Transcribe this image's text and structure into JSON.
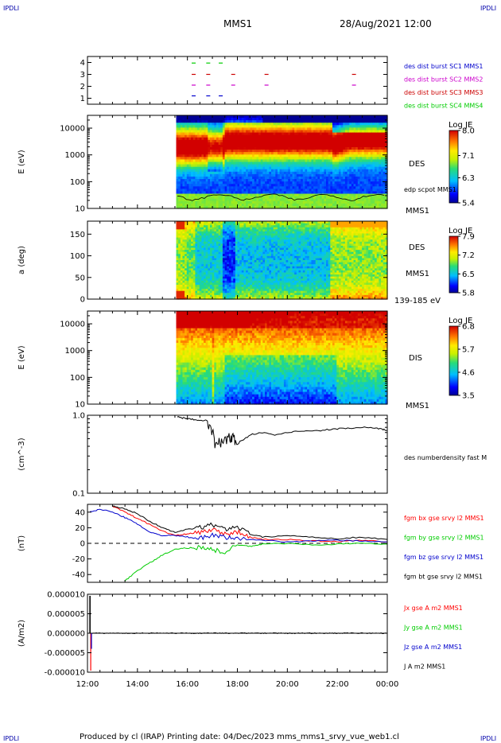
{
  "header": {
    "spacecraft": "MMS1",
    "datetime": "28/Aug/2021 12:00"
  },
  "corner_label": "IPDLI",
  "footer": {
    "text": "Produced by cl (IRAP)   Printing date: 04/Dec/2023   mms_mms1_srvy_vue_web1.cl"
  },
  "colors": {
    "red": "#ff0000",
    "green": "#00cc00",
    "blue": "#0000cc",
    "magenta": "#cc00cc",
    "black": "#000000"
  },
  "chart_data": [
    {
      "type": "scatter",
      "panel": "burst-availability",
      "yticks": [
        "1",
        "2",
        "3",
        "4"
      ],
      "ylim": [
        0.5,
        4.5
      ],
      "series": [
        {
          "name": "des dist burst SC1 MMS1",
          "color": "#0000cc",
          "y": 1.2,
          "x": [
            "16:15",
            "16:50",
            "17:20"
          ]
        },
        {
          "name": "des dist burst SC2 MMS2",
          "color": "#cc00cc",
          "y": 2.1,
          "x": [
            "16:15",
            "16:50",
            "17:50",
            "19:10",
            "22:40"
          ]
        },
        {
          "name": "des dist burst SC3 MMS3",
          "color": "#cc0000",
          "y": 3.0,
          "x": [
            "16:15",
            "16:50",
            "17:50",
            "19:10",
            "22:40"
          ]
        },
        {
          "name": "des dist burst SC4 MMS4",
          "color": "#00cc00",
          "y": 3.95,
          "x": [
            "16:15",
            "16:50",
            "17:20"
          ]
        }
      ]
    },
    {
      "type": "heatmap",
      "panel": "des-energy",
      "ylabel": "E (eV)",
      "yscale": "log",
      "yticks": [
        "10",
        "100",
        "1000",
        "10000"
      ],
      "label": "DES",
      "overlay_label": "edp scpot MMS1",
      "sat_label": "MMS1",
      "colorbar": {
        "title": "Log JE",
        "ticks": [
          "8.0",
          "7.1",
          "6.3",
          "5.4"
        ],
        "range": [
          5.4,
          8.0
        ]
      }
    },
    {
      "type": "heatmap",
      "panel": "des-pitch",
      "ylabel": "a (deg)",
      "yticks": [
        "0",
        "50",
        "100",
        "150"
      ],
      "ylim": [
        0,
        180
      ],
      "label": "DES",
      "sat_label": "MMS1",
      "energy_label": "139-185 eV",
      "colorbar": {
        "title": "Log JE",
        "ticks": [
          "7.9",
          "7.2",
          "6.5",
          "5.8"
        ],
        "range": [
          5.8,
          7.9
        ]
      }
    },
    {
      "type": "heatmap",
      "panel": "dis-energy",
      "ylabel": "E (eV)",
      "yscale": "log",
      "yticks": [
        "10",
        "100",
        "1000",
        "10000"
      ],
      "label": "DIS",
      "sat_label": "MMS1",
      "colorbar": {
        "title": "Log JE",
        "ticks": [
          "6.8",
          "5.7",
          "4.6",
          "3.5"
        ],
        "range": [
          3.5,
          6.8
        ]
      }
    },
    {
      "type": "line",
      "panel": "density",
      "ylabel": "(cm^-3)",
      "yscale": "log",
      "yticks": [
        "0.1",
        "1.0"
      ],
      "ylim": [
        0.1,
        1.0
      ],
      "series": [
        {
          "name": "des numberdensity fast M",
          "color": "#000000",
          "x": [
            15.6,
            15.8,
            16.0,
            16.3,
            16.6,
            16.8,
            16.95,
            17.1,
            17.3,
            17.5,
            17.7,
            17.85,
            18.0,
            18.3,
            18.6,
            19.0,
            19.5,
            20.0,
            20.5,
            21.0,
            21.5,
            22.0,
            22.5,
            23.0,
            23.5,
            23.8,
            24.0
          ],
          "y": [
            0.95,
            0.92,
            0.9,
            0.88,
            0.86,
            0.85,
            0.7,
            0.42,
            0.45,
            0.47,
            0.52,
            0.5,
            0.44,
            0.5,
            0.57,
            0.6,
            0.55,
            0.6,
            0.63,
            0.62,
            0.65,
            0.67,
            0.68,
            0.7,
            0.68,
            0.66,
            0.64
          ]
        }
      ]
    },
    {
      "type": "line",
      "panel": "magnetic-field",
      "ylabel": "(nT)",
      "yticks": [
        "-40",
        "-20",
        "0",
        "20",
        "40"
      ],
      "ylim": [
        -50,
        50
      ],
      "series": [
        {
          "name": "fgm bx gse srvy l2 MMS1",
          "color": "#ff0000",
          "x": [
            13.0,
            13.5,
            14.0,
            14.5,
            15.0,
            15.5,
            16.0,
            16.5,
            17.0,
            17.5,
            18.0,
            18.5,
            19.0,
            20.0,
            21.0,
            22.0,
            23.0,
            24.0
          ],
          "y": [
            48,
            40,
            32,
            24,
            16,
            10,
            12,
            14,
            18,
            12,
            15,
            8,
            5,
            5,
            3,
            2,
            4,
            2
          ]
        },
        {
          "name": "fgm by gse srvy l2 MMS1",
          "color": "#00cc00",
          "x": [
            13.5,
            14.0,
            14.5,
            15.0,
            15.5,
            16.0,
            16.5,
            17.0,
            17.5,
            18.0,
            18.5,
            19.0,
            20.0,
            21.0,
            22.0,
            23.0,
            24.0
          ],
          "y": [
            -48,
            -35,
            -25,
            -15,
            -8,
            -6,
            -5,
            -8,
            -12,
            -2,
            -4,
            -1,
            0,
            -2,
            -1,
            0,
            -1
          ]
        },
        {
          "name": "fgm bz gse srvy l2 MMS1",
          "color": "#0000cc",
          "x": [
            12.1,
            12.5,
            13.0,
            13.5,
            14.0,
            14.5,
            15.0,
            15.5,
            16.0,
            16.5,
            17.0,
            17.5,
            18.0,
            19.0,
            20.0,
            21.0,
            22.0,
            23.0,
            24.0
          ],
          "y": [
            40,
            44,
            40,
            33,
            25,
            14,
            10,
            10,
            8,
            6,
            10,
            8,
            6,
            4,
            2,
            3,
            4,
            3,
            2
          ]
        },
        {
          "name": "fgm bt gse srvy l2 MMS1",
          "color": "#000000",
          "x": [
            13.0,
            13.5,
            14.0,
            14.5,
            15.0,
            15.5,
            16.0,
            16.5,
            17.0,
            17.5,
            18.0,
            18.5,
            19.0,
            20.0,
            21.0,
            22.0,
            23.0,
            24.0
          ],
          "y": [
            48,
            44,
            38,
            28,
            20,
            14,
            18,
            20,
            24,
            18,
            22,
            12,
            8,
            10,
            8,
            6,
            8,
            5
          ]
        }
      ]
    },
    {
      "type": "line",
      "panel": "current-density",
      "ylabel": "(A/m2)",
      "yticks": [
        "0.000010",
        "0.000005",
        "0.000000",
        "-0.000005",
        "-0.000010"
      ],
      "ylim": [
        -1e-05,
        1e-05
      ],
      "series": [
        {
          "name": "Jx gse A m2 MMS1",
          "color": "#ff0000"
        },
        {
          "name": "Jy gse A m2 MMS1",
          "color": "#00cc00"
        },
        {
          "name": "Jz gse A m2 MMS1",
          "color": "#0000cc"
        },
        {
          "name": "J A m2 MMS1",
          "color": "#000000"
        }
      ]
    }
  ],
  "xaxis": {
    "ticks": [
      "12:00",
      "14:00",
      "16:00",
      "18:00",
      "20:00",
      "22:00",
      "00:00"
    ],
    "xlim": [
      12,
      24
    ]
  }
}
